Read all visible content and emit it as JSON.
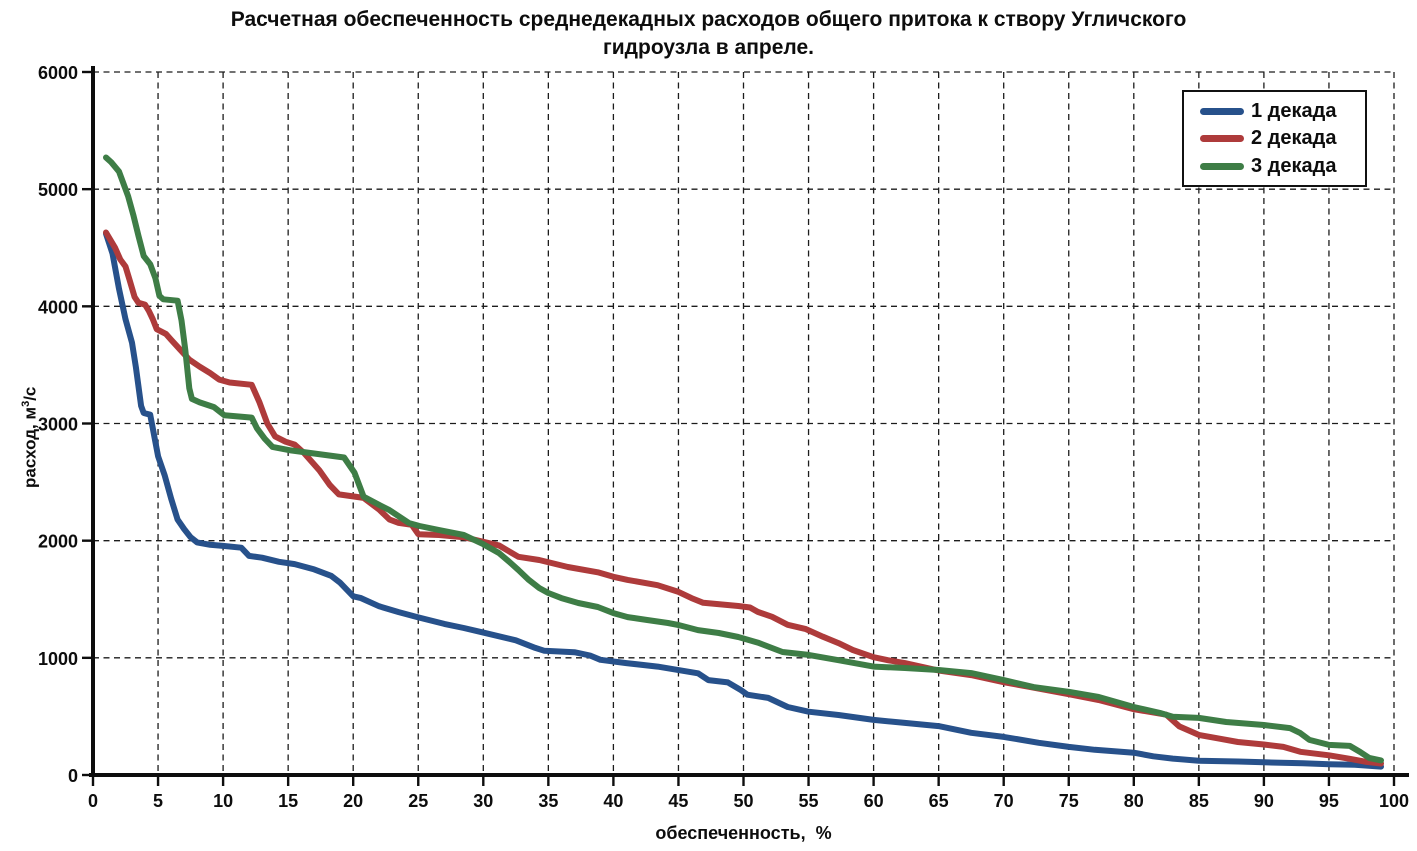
{
  "page": {
    "background": "#ffffff"
  },
  "chart_data": {
    "type": "line",
    "title_lines": [
      "Расчетная обеспеченность среднедекадных расходов общего притока к створу Угличского",
      "гидроузла в апреле."
    ],
    "title": "Расчетная обеспеченность среднедекадных расходов общего притока к створу Угличского гидроузла в апреле.",
    "xlabel": "обеспеченность,  %",
    "ylabel_prefix": "расход, м",
    "ylabel_sup": "3",
    "ylabel_suffix": "/с",
    "xlim": [
      0,
      100
    ],
    "ylim": [
      0,
      6000
    ],
    "x_ticks": [
      0,
      5,
      10,
      15,
      20,
      25,
      30,
      35,
      40,
      45,
      50,
      55,
      60,
      65,
      70,
      75,
      80,
      85,
      90,
      95,
      100
    ],
    "y_ticks": [
      0,
      1000,
      2000,
      3000,
      4000,
      5000,
      6000
    ],
    "grid": "dashed-black",
    "legend_position": "top-right",
    "series": [
      {
        "name": "1 декада",
        "color": "#27518B",
        "points": [
          [
            1,
            4620
          ],
          [
            1.5,
            4450
          ],
          [
            2,
            4150
          ],
          [
            2.5,
            3890
          ],
          [
            3,
            3690
          ],
          [
            3.3,
            3480
          ],
          [
            3.7,
            3150
          ],
          [
            3.9,
            3090
          ],
          [
            4.4,
            3075
          ],
          [
            5,
            2720
          ],
          [
            5.5,
            2560
          ],
          [
            6,
            2360
          ],
          [
            6.5,
            2180
          ],
          [
            7,
            2100
          ],
          [
            7.5,
            2030
          ],
          [
            8,
            1985
          ],
          [
            9,
            1965
          ],
          [
            10,
            1955
          ],
          [
            11.4,
            1940
          ],
          [
            12,
            1870
          ],
          [
            13,
            1855
          ],
          [
            14.3,
            1820
          ],
          [
            15.5,
            1800
          ],
          [
            17,
            1755
          ],
          [
            18.3,
            1700
          ],
          [
            19,
            1640
          ],
          [
            20,
            1525
          ],
          [
            20.6,
            1510
          ],
          [
            22,
            1440
          ],
          [
            23.5,
            1390
          ],
          [
            25,
            1345
          ],
          [
            27,
            1290
          ],
          [
            28.5,
            1255
          ],
          [
            30,
            1215
          ],
          [
            32.5,
            1150
          ],
          [
            34,
            1085
          ],
          [
            34.7,
            1060
          ],
          [
            37,
            1048
          ],
          [
            38.2,
            1020
          ],
          [
            39,
            983
          ],
          [
            41,
            955
          ],
          [
            43.4,
            925
          ],
          [
            45,
            895
          ],
          [
            46.5,
            868
          ],
          [
            47.3,
            810
          ],
          [
            48.8,
            790
          ],
          [
            49.8,
            725
          ],
          [
            50.3,
            685
          ],
          [
            51.9,
            658
          ],
          [
            53.4,
            580
          ],
          [
            55,
            540
          ],
          [
            57.3,
            512
          ],
          [
            60,
            470
          ],
          [
            62.4,
            445
          ],
          [
            65,
            417
          ],
          [
            67.5,
            360
          ],
          [
            70,
            325
          ],
          [
            72.7,
            275
          ],
          [
            75,
            240
          ],
          [
            77,
            215
          ],
          [
            80,
            190
          ],
          [
            81.5,
            160
          ],
          [
            83,
            140
          ],
          [
            85,
            122
          ],
          [
            88,
            115
          ],
          [
            90,
            108
          ],
          [
            93,
            100
          ],
          [
            95,
            92
          ],
          [
            97,
            88
          ],
          [
            99,
            72
          ]
        ]
      },
      {
        "name": "2 декада",
        "color": "#AE3B3B",
        "points": [
          [
            1,
            4630
          ],
          [
            1.7,
            4500
          ],
          [
            2.1,
            4400
          ],
          [
            2.5,
            4340
          ],
          [
            2.8,
            4230
          ],
          [
            3.2,
            4080
          ],
          [
            3.5,
            4030
          ],
          [
            4,
            4015
          ],
          [
            4.3,
            3960
          ],
          [
            4.6,
            3890
          ],
          [
            4.9,
            3805
          ],
          [
            5.6,
            3765
          ],
          [
            6,
            3715
          ],
          [
            6.7,
            3630
          ],
          [
            7.4,
            3545
          ],
          [
            8.2,
            3485
          ],
          [
            9,
            3430
          ],
          [
            9.7,
            3375
          ],
          [
            10.5,
            3350
          ],
          [
            12.2,
            3330
          ],
          [
            12.8,
            3180
          ],
          [
            13.4,
            3000
          ],
          [
            14,
            2890
          ],
          [
            14.8,
            2845
          ],
          [
            15.5,
            2820
          ],
          [
            16.2,
            2750
          ],
          [
            17.4,
            2600
          ],
          [
            18.2,
            2475
          ],
          [
            18.9,
            2395
          ],
          [
            20.8,
            2365
          ],
          [
            22,
            2265
          ],
          [
            22.8,
            2180
          ],
          [
            23.5,
            2152
          ],
          [
            24.5,
            2135
          ],
          [
            25,
            2055
          ],
          [
            26.6,
            2048
          ],
          [
            28.5,
            2030
          ],
          [
            30,
            1990
          ],
          [
            31.2,
            1960
          ],
          [
            32.7,
            1862
          ],
          [
            34.3,
            1835
          ],
          [
            36.5,
            1775
          ],
          [
            38.8,
            1730
          ],
          [
            40,
            1692
          ],
          [
            41.1,
            1665
          ],
          [
            43.4,
            1620
          ],
          [
            45,
            1563
          ],
          [
            46,
            1510
          ],
          [
            46.9,
            1470
          ],
          [
            49.6,
            1442
          ],
          [
            50.5,
            1430
          ],
          [
            51.1,
            1392
          ],
          [
            52.2,
            1350
          ],
          [
            53.4,
            1282
          ],
          [
            54.8,
            1245
          ],
          [
            56.1,
            1180
          ],
          [
            57.3,
            1126
          ],
          [
            58.4,
            1067
          ],
          [
            60,
            1005
          ],
          [
            61.1,
            980
          ],
          [
            62.4,
            955
          ],
          [
            65,
            892
          ],
          [
            67.5,
            853
          ],
          [
            70,
            792
          ],
          [
            72,
            752
          ],
          [
            75,
            690
          ],
          [
            77.3,
            640
          ],
          [
            80,
            562
          ],
          [
            82.5,
            515
          ],
          [
            83.5,
            415
          ],
          [
            85,
            342
          ],
          [
            86.6,
            310
          ],
          [
            88,
            282
          ],
          [
            90,
            260
          ],
          [
            91.5,
            240
          ],
          [
            92.8,
            198
          ],
          [
            95,
            168
          ],
          [
            96.6,
            138
          ],
          [
            97.9,
            112
          ],
          [
            99,
            98
          ]
        ]
      },
      {
        "name": "3 декада",
        "color": "#3E7D46",
        "points": [
          [
            1,
            5270
          ],
          [
            1.4,
            5230
          ],
          [
            2,
            5150
          ],
          [
            2.3,
            5060
          ],
          [
            2.7,
            4940
          ],
          [
            3.1,
            4780
          ],
          [
            3.5,
            4600
          ],
          [
            3.9,
            4430
          ],
          [
            4.4,
            4360
          ],
          [
            4.8,
            4240
          ],
          [
            5.1,
            4090
          ],
          [
            5.4,
            4060
          ],
          [
            6.5,
            4048
          ],
          [
            6.8,
            3880
          ],
          [
            7.1,
            3620
          ],
          [
            7.4,
            3300
          ],
          [
            7.6,
            3210
          ],
          [
            8.2,
            3180
          ],
          [
            9.3,
            3140
          ],
          [
            10.1,
            3070
          ],
          [
            12.2,
            3050
          ],
          [
            12.6,
            2960
          ],
          [
            13.2,
            2870
          ],
          [
            13.8,
            2800
          ],
          [
            15.2,
            2770
          ],
          [
            19.3,
            2710
          ],
          [
            20.1,
            2580
          ],
          [
            20.8,
            2375
          ],
          [
            22,
            2305
          ],
          [
            22.8,
            2260
          ],
          [
            24.3,
            2150
          ],
          [
            25.1,
            2125
          ],
          [
            26.6,
            2090
          ],
          [
            28.5,
            2048
          ],
          [
            30,
            1970
          ],
          [
            31.2,
            1895
          ],
          [
            32,
            1820
          ],
          [
            32.7,
            1750
          ],
          [
            33.5,
            1665
          ],
          [
            34.3,
            1596
          ],
          [
            35,
            1553
          ],
          [
            36,
            1510
          ],
          [
            37.3,
            1468
          ],
          [
            38.8,
            1434
          ],
          [
            40,
            1382
          ],
          [
            41.1,
            1348
          ],
          [
            42.6,
            1323
          ],
          [
            44.2,
            1297
          ],
          [
            45,
            1280
          ],
          [
            46.5,
            1237
          ],
          [
            48.1,
            1212
          ],
          [
            49.6,
            1178
          ],
          [
            51.1,
            1130
          ],
          [
            53,
            1050
          ],
          [
            55,
            1025
          ],
          [
            57.3,
            980
          ],
          [
            60,
            925
          ],
          [
            62.4,
            913
          ],
          [
            65,
            896
          ],
          [
            67.5,
            870
          ],
          [
            70,
            811
          ],
          [
            72.3,
            750
          ],
          [
            75,
            710
          ],
          [
            77.3,
            666
          ],
          [
            80,
            580
          ],
          [
            82,
            530
          ],
          [
            83,
            497
          ],
          [
            85,
            487
          ],
          [
            87.1,
            452
          ],
          [
            90,
            427
          ],
          [
            92,
            400
          ],
          [
            92.8,
            358
          ],
          [
            93.5,
            300
          ],
          [
            95,
            257
          ],
          [
            96.6,
            248
          ],
          [
            97.4,
            196
          ],
          [
            98.1,
            145
          ],
          [
            99,
            125
          ]
        ]
      }
    ]
  }
}
